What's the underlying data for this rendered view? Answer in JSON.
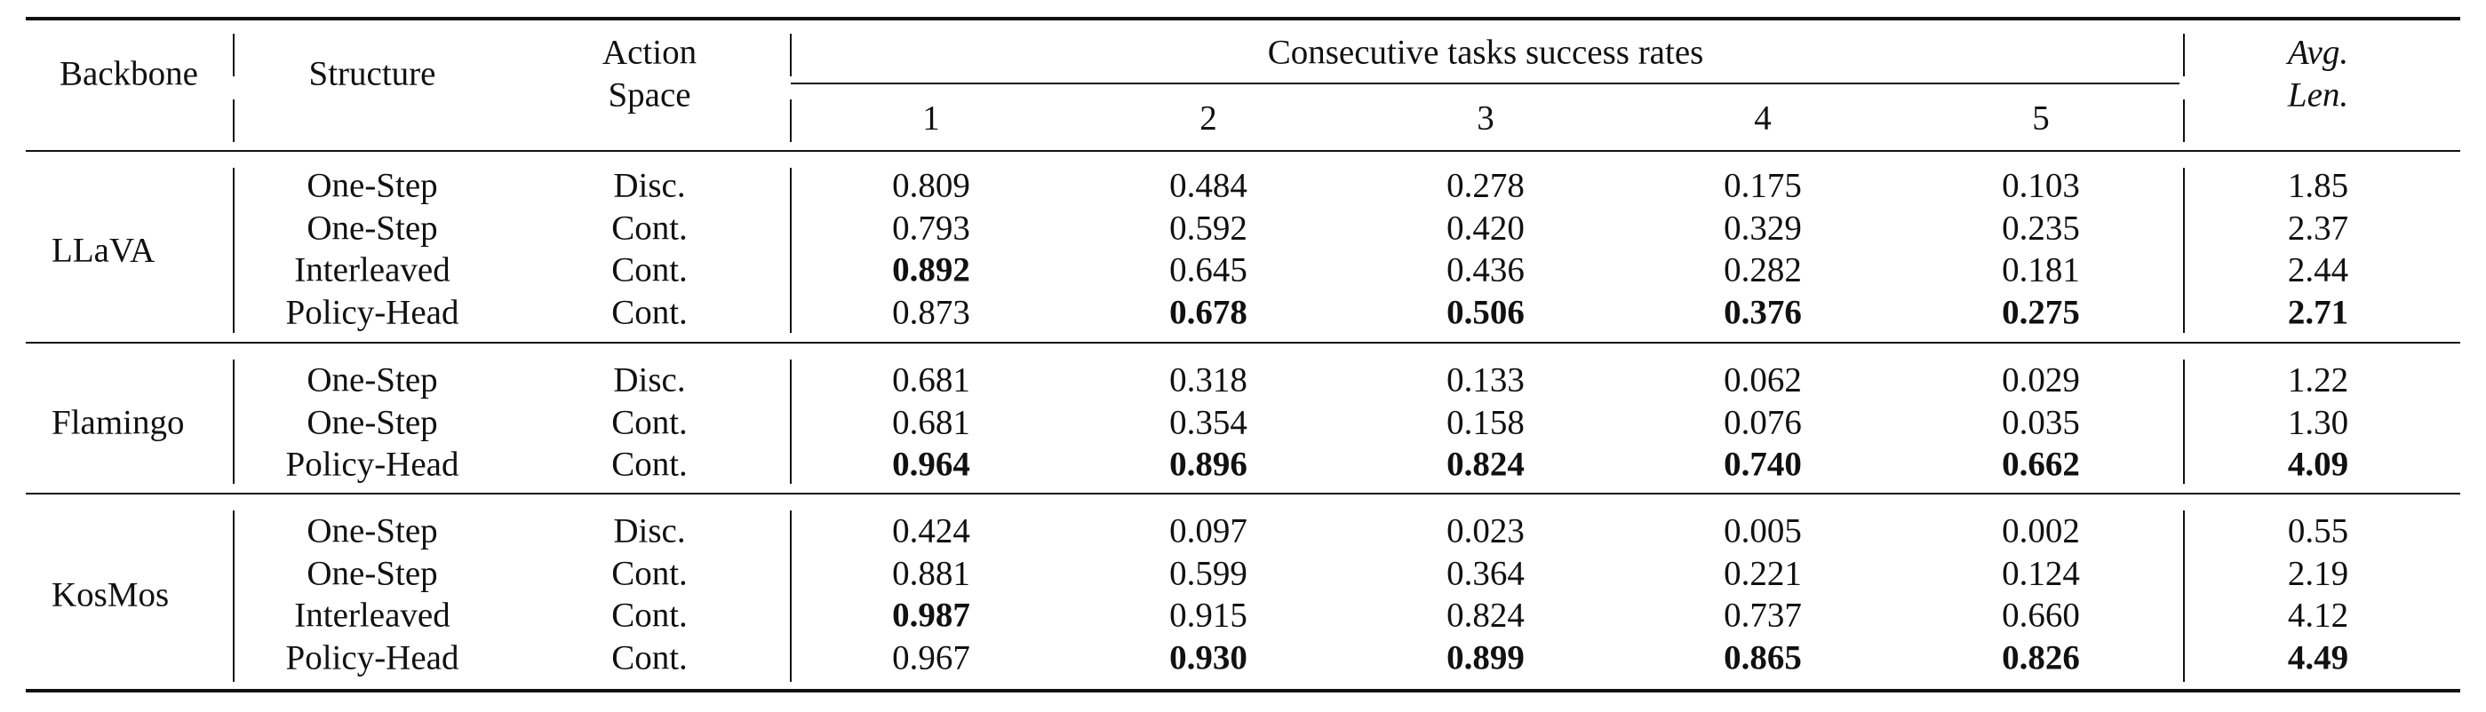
{
  "table": {
    "header": {
      "backbone": "Backbone",
      "structure": "Structure",
      "action_space_line1": "Action",
      "action_space_line2": "Space",
      "consecutive": "Consecutive tasks success rates",
      "task_numbers": [
        "1",
        "2",
        "3",
        "4",
        "5"
      ],
      "avg_line1": "Avg.",
      "avg_line2": "Len."
    },
    "groups": [
      {
        "backbone": "LLaVA",
        "rows": [
          {
            "structure": "One-Step",
            "action": "Disc.",
            "values": [
              "0.809",
              "0.484",
              "0.278",
              "0.175",
              "0.103"
            ],
            "avg": "1.85",
            "bold": [
              false,
              false,
              false,
              false,
              false,
              false
            ]
          },
          {
            "structure": "One-Step",
            "action": "Cont.",
            "values": [
              "0.793",
              "0.592",
              "0.420",
              "0.329",
              "0.235"
            ],
            "avg": "2.37",
            "bold": [
              false,
              false,
              false,
              false,
              false,
              false
            ]
          },
          {
            "structure": "Interleaved",
            "action": "Cont.",
            "values": [
              "0.892",
              "0.645",
              "0.436",
              "0.282",
              "0.181"
            ],
            "avg": "2.44",
            "bold": [
              true,
              false,
              false,
              false,
              false,
              false
            ]
          },
          {
            "structure": "Policy-Head",
            "action": "Cont.",
            "values": [
              "0.873",
              "0.678",
              "0.506",
              "0.376",
              "0.275"
            ],
            "avg": "2.71",
            "bold": [
              false,
              true,
              true,
              true,
              true,
              true
            ]
          }
        ]
      },
      {
        "backbone": "Flamingo",
        "rows": [
          {
            "structure": "One-Step",
            "action": "Disc.",
            "values": [
              "0.681",
              "0.318",
              "0.133",
              "0.062",
              "0.029"
            ],
            "avg": "1.22",
            "bold": [
              false,
              false,
              false,
              false,
              false,
              false
            ]
          },
          {
            "structure": "One-Step",
            "action": "Cont.",
            "values": [
              "0.681",
              "0.354",
              "0.158",
              "0.076",
              "0.035"
            ],
            "avg": "1.30",
            "bold": [
              false,
              false,
              false,
              false,
              false,
              false
            ]
          },
          {
            "structure": "Policy-Head",
            "action": "Cont.",
            "values": [
              "0.964",
              "0.896",
              "0.824",
              "0.740",
              "0.662"
            ],
            "avg": "4.09",
            "bold": [
              true,
              true,
              true,
              true,
              true,
              true
            ]
          }
        ]
      },
      {
        "backbone": "KosMos",
        "rows": [
          {
            "structure": "One-Step",
            "action": "Disc.",
            "values": [
              "0.424",
              "0.097",
              "0.023",
              "0.005",
              "0.002"
            ],
            "avg": "0.55",
            "bold": [
              false,
              false,
              false,
              false,
              false,
              false
            ]
          },
          {
            "structure": "One-Step",
            "action": "Cont.",
            "values": [
              "0.881",
              "0.599",
              "0.364",
              "0.221",
              "0.124"
            ],
            "avg": "2.19",
            "bold": [
              false,
              false,
              false,
              false,
              false,
              false
            ]
          },
          {
            "structure": "Interleaved",
            "action": "Cont.",
            "values": [
              "0.987",
              "0.915",
              "0.824",
              "0.737",
              "0.660"
            ],
            "avg": "4.12",
            "bold": [
              true,
              false,
              false,
              false,
              false,
              false
            ]
          },
          {
            "structure": "Policy-Head",
            "action": "Cont.",
            "values": [
              "0.967",
              "0.930",
              "0.899",
              "0.865",
              "0.826"
            ],
            "avg": "4.49",
            "bold": [
              false,
              true,
              true,
              true,
              true,
              true
            ]
          }
        ]
      }
    ]
  }
}
